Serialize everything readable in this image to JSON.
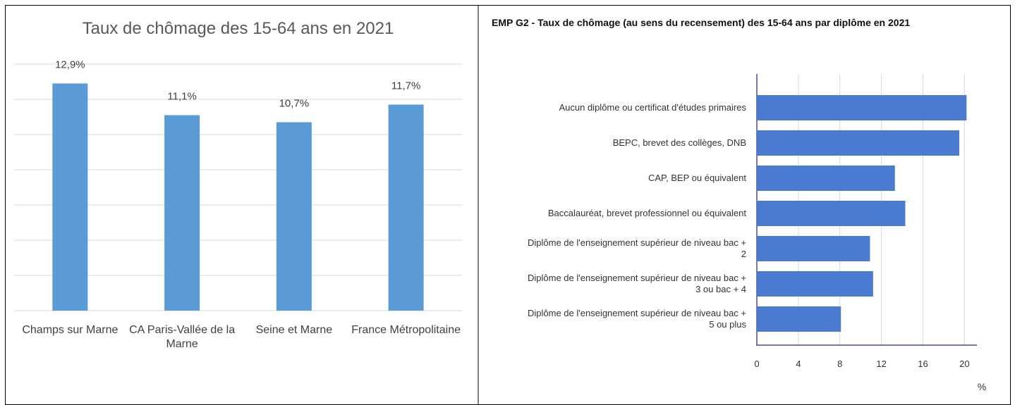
{
  "chart_data": [
    {
      "type": "bar",
      "title": "Taux de chômage des 15-64 ans en 2021",
      "categories": [
        "Champs sur Marne",
        "CA Paris-Vallée de la Marne",
        "Seine et Marne",
        "France Métropolitaine"
      ],
      "values": [
        12.9,
        11.1,
        10.7,
        11.7
      ],
      "value_labels": [
        "12,9%",
        "11,1%",
        "10,7%",
        "11,7%"
      ],
      "color": "#5b9bd5",
      "ylim": [
        0,
        14
      ],
      "yticks": [
        0,
        2,
        4,
        6,
        8,
        10,
        12,
        14
      ],
      "grid": true
    },
    {
      "type": "hbar",
      "title": "EMP G2 - Taux de chômage (au sens du recensement) des 15-64 ans par diplôme en 2021",
      "categories": [
        "Aucun diplôme ou certificat d'études primaires",
        "BEPC, brevet des collèges, DNB",
        "CAP, BEP ou équivalent",
        "Baccalauréat, brevet professionnel ou équivalent",
        "Diplôme de l'enseignement supérieur de niveau bac + 2",
        "Diplôme de l'enseignement supérieur de niveau bac + 3 ou bac + 4",
        "Diplôme de l'enseignement supérieur de niveau bac + 5 ou plus"
      ],
      "values": [
        20.2,
        19.5,
        13.3,
        14.3,
        10.9,
        11.2,
        8.1
      ],
      "color": "#4a7bd0",
      "xlim": [
        0,
        21.2
      ],
      "xticks": [
        0,
        4,
        8,
        12,
        16,
        20
      ],
      "xlabel": "%",
      "grid": true
    }
  ]
}
